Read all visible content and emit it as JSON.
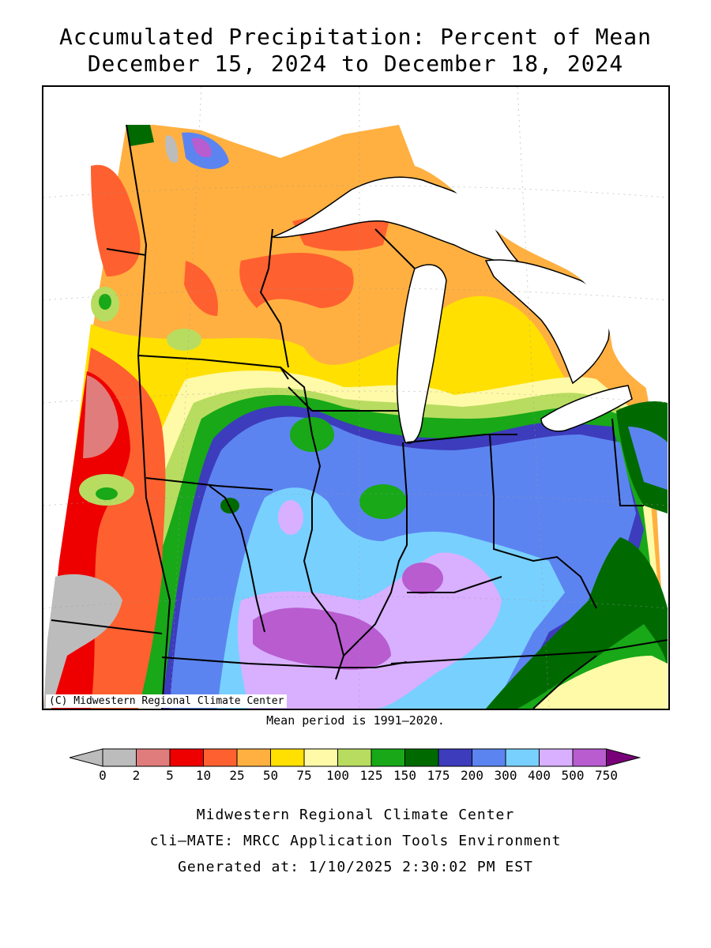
{
  "title": {
    "line1": "Accumulated Precipitation: Percent of Mean",
    "line2": "December 15, 2024 to December 18, 2024"
  },
  "map": {
    "credit": "(C) Midwestern Regional Climate Center",
    "region": "Midwest US",
    "colors": {
      "gray": "#bcbcbc",
      "pink": "#e07c7c",
      "red": "#ee0000",
      "orange_red": "#ff6030",
      "orange": "#ffb040",
      "yellow": "#ffe000",
      "light_yellow": "#fffaa8",
      "yellow_green": "#b8dc60",
      "green": "#18a818",
      "dark_green": "#006a00",
      "navy": "#3c3cbc",
      "blue": "#5c84f0",
      "light_blue": "#78d0ff",
      "lavender": "#d8b0ff",
      "purple": "#b85cd0",
      "dark_purple": "#780078"
    }
  },
  "mean_note": "Mean period is 1991–2020.",
  "legend": {
    "labels": [
      "0",
      "2",
      "5",
      "10",
      "25",
      "50",
      "75",
      "100",
      "125",
      "150",
      "175",
      "200",
      "300",
      "400",
      "500",
      "750"
    ],
    "colors": [
      "#bcbcbc",
      "#e07c7c",
      "#ee0000",
      "#ff6030",
      "#ffb040",
      "#ffe000",
      "#fffaa8",
      "#b8dc60",
      "#18a818",
      "#006a00",
      "#3c3cbc",
      "#5c84f0",
      "#78d0ff",
      "#d8b0ff",
      "#b85cd0"
    ],
    "low_arrow_color": "#bcbcbc",
    "high_arrow_color": "#780078"
  },
  "footer": {
    "line1": "Midwestern Regional Climate Center",
    "line2": "cli–MATE: MRCC Application Tools Environment",
    "line3": "Generated at: 1/10/2025 2:30:02 PM EST"
  }
}
